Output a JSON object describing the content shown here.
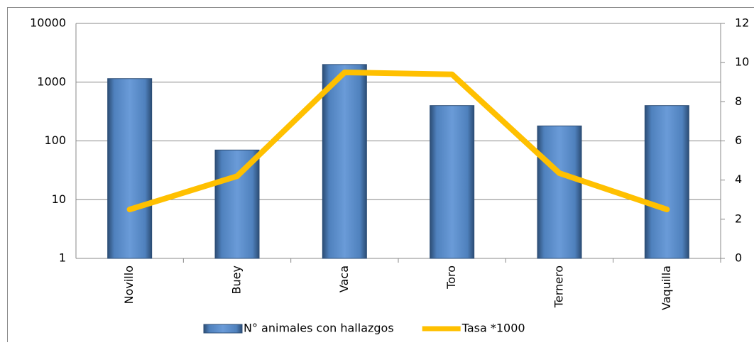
{
  "chart_data": {
    "type": "bar",
    "categories": [
      "Novillo",
      "Buey",
      "Vaca",
      "Toro",
      "Ternero",
      "Vaquilla"
    ],
    "series": [
      {
        "name": "N° animales con hallazgos",
        "type": "bar",
        "color": "#4f81bd",
        "values": [
          1150,
          70,
          2000,
          400,
          180,
          400
        ]
      },
      {
        "name": "Tasa *1000",
        "type": "line",
        "color": "#ffc000",
        "axis": "y2",
        "values": [
          2.5,
          4.2,
          9.5,
          9.4,
          4.35,
          2.5
        ]
      }
    ],
    "yscale": "log",
    "ylim": [
      1,
      10000
    ],
    "yticks": [
      1,
      10,
      100,
      1000,
      10000
    ],
    "y2lim": [
      0,
      12
    ],
    "y2ticks": [
      0,
      2,
      4,
      6,
      8,
      10,
      12
    ],
    "grid": true,
    "legend": "bottom"
  }
}
